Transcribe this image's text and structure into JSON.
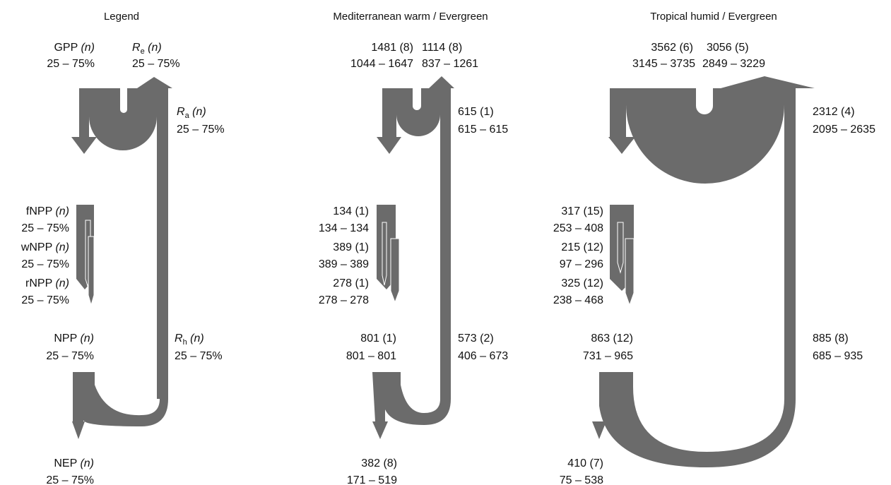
{
  "colors": {
    "flow": "#6b6b6b",
    "text": "#111111",
    "background": "#ffffff"
  },
  "panels": [
    {
      "title": "Legend",
      "gpp": {
        "prefix": "GPP",
        "n": "(n)",
        "range": "25 – 75%"
      },
      "re": {
        "sym": "R",
        "sub": "e",
        "n": "(n)",
        "range": "25 – 75%"
      },
      "ra": {
        "sym": "R",
        "sub": "a",
        "n": "(n)",
        "range": "25 – 75%"
      },
      "fnpp": {
        "prefix": "fNPP",
        "n": "(n)",
        "range": "25 – 75%"
      },
      "wnpp": {
        "prefix": "wNPP",
        "n": "(n)",
        "range": "25 – 75%"
      },
      "rnpp": {
        "prefix": "rNPP",
        "n": "(n)",
        "range": "25 – 75%"
      },
      "npp": {
        "prefix": "NPP",
        "n": "(n)",
        "range": "25 – 75%"
      },
      "rh": {
        "sym": "R",
        "sub": "h",
        "n": "(n)",
        "range": "25 – 75%"
      },
      "nep": {
        "prefix": "NEP",
        "n": "(n)",
        "range": "25 – 75%"
      }
    },
    {
      "title": "Mediterranean warm / Evergreen",
      "gpp": {
        "value": "1481 (8)",
        "range": "1044 – 1647"
      },
      "re": {
        "value": "1114 (8)",
        "range": "837 – 1261"
      },
      "ra": {
        "value": "615 (1)",
        "range": "615 – 615"
      },
      "fnpp": {
        "value": "134 (1)",
        "range": "134 – 134"
      },
      "wnpp": {
        "value": "389 (1)",
        "range": "389 – 389"
      },
      "rnpp": {
        "value": "278 (1)",
        "range": "278 – 278"
      },
      "npp": {
        "value": "801 (1)",
        "range": "801 – 801"
      },
      "rh": {
        "value": "573 (2)",
        "range": "406 – 673"
      },
      "nep": {
        "value": "382 (8)",
        "range": "171 – 519"
      }
    },
    {
      "title": "Tropical humid / Evergreen",
      "gpp": {
        "value": "3562 (6)",
        "range": "3145 – 3735"
      },
      "re": {
        "value": "3056 (5)",
        "range": "2849 – 3229"
      },
      "ra": {
        "value": "2312 (4)",
        "range": "2095 – 2635"
      },
      "fnpp": {
        "value": "317 (15)",
        "range": "253 – 408"
      },
      "wnpp": {
        "value": "215 (12)",
        "range": "97 – 296"
      },
      "rnpp": {
        "value": "325 (12)",
        "range": "238 – 468"
      },
      "npp": {
        "value": "863 (12)",
        "range": "731 – 965"
      },
      "rh": {
        "value": "885 (8)",
        "range": "685 – 935"
      },
      "nep": {
        "value": "410 (7)",
        "range": "75 – 538"
      }
    }
  ]
}
